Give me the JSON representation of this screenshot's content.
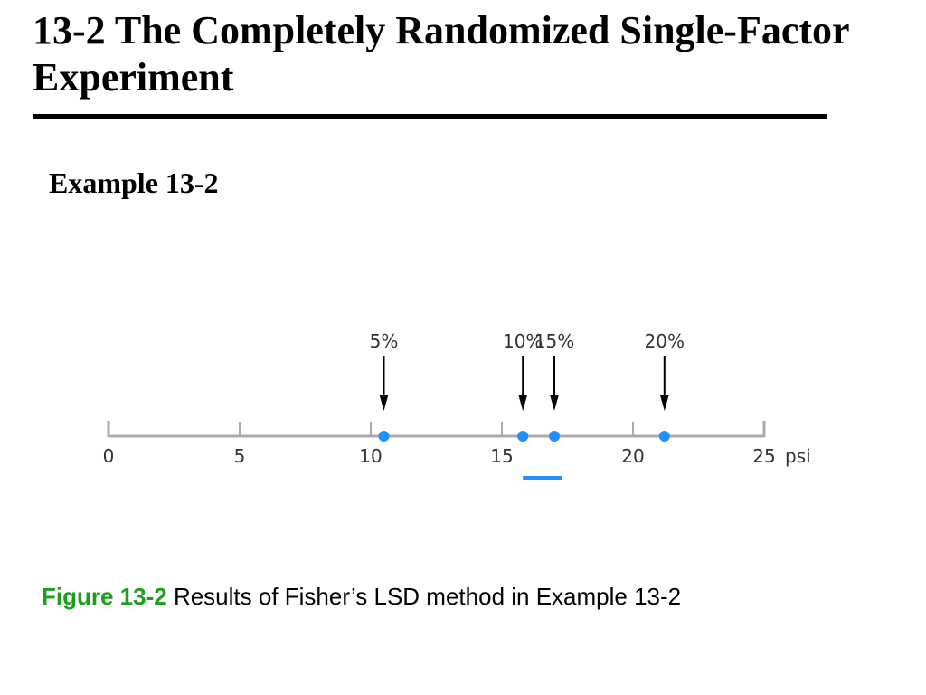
{
  "slide": {
    "title": "13-2 The Completely Randomized Single-Factor Experiment",
    "subtitle": "Example 13-2"
  },
  "caption": {
    "label": "Figure 13-2",
    "text": " Results of Fisher’s LSD method in Example 13-2"
  },
  "colors": {
    "point": "#1e90ff",
    "axis": "#aaaaaa",
    "caption_label": "#1e9e1e"
  },
  "chart_data": {
    "type": "scatter",
    "axis_range": [
      0,
      25
    ],
    "ticks": [
      0,
      5,
      10,
      15,
      20,
      25
    ],
    "tick_labels": [
      "0",
      "5",
      "10",
      "15",
      "20",
      "25"
    ],
    "unit": "psi",
    "points": [
      {
        "label": "5%",
        "value": 10.5
      },
      {
        "label": "10%",
        "value": 15.8
      },
      {
        "label": "15%",
        "value": 17.0
      },
      {
        "label": "20%",
        "value": 21.2
      }
    ],
    "underline_groups": [
      {
        "from": 15.8,
        "to": 17.0
      }
    ]
  }
}
